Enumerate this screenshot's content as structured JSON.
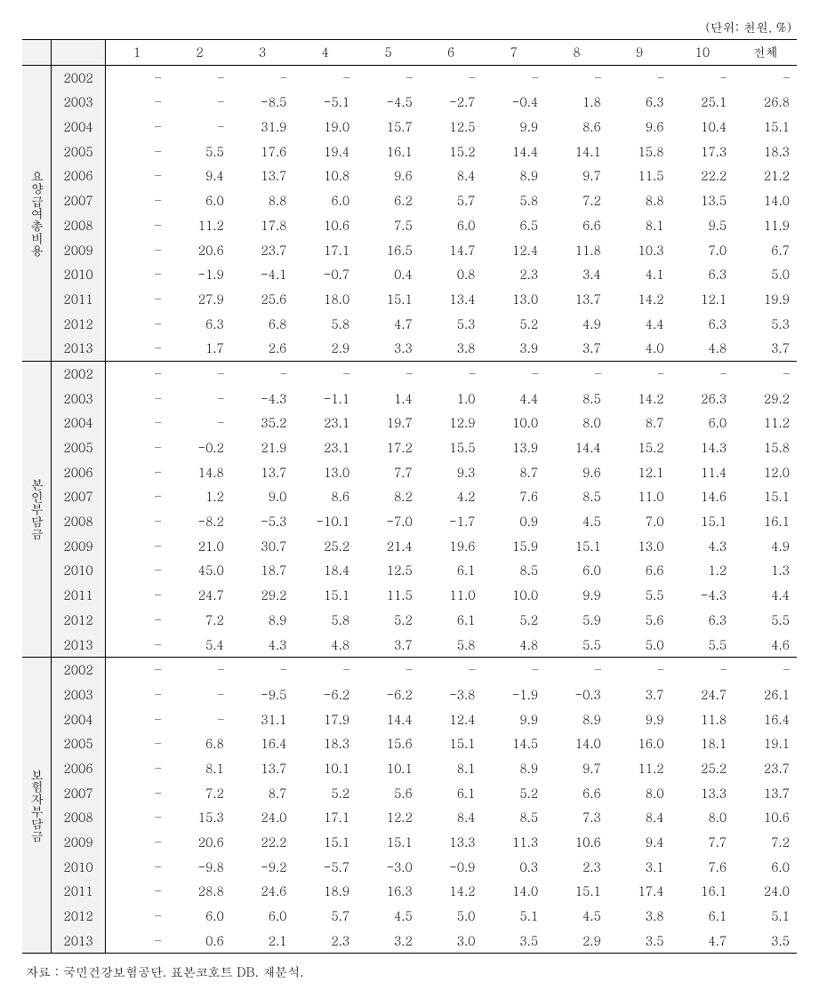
{
  "unit_label": "(단위: 천원, %)",
  "source_label": "자료 : 국민건강보험공단. 표본코호트 DB. 재분석.",
  "columns": [
    "1",
    "2",
    "3",
    "4",
    "5",
    "6",
    "7",
    "8",
    "9",
    "10",
    "전체"
  ],
  "groups": [
    {
      "label": "요양급여총비용",
      "rows": [
        {
          "year": "2002",
          "cells": [
            "–",
            "–",
            "–",
            "–",
            "–",
            "–",
            "–",
            "–",
            "–",
            "–",
            "–"
          ]
        },
        {
          "year": "2003",
          "cells": [
            "–",
            "–",
            "-8.5",
            "-5.1",
            "-4.5",
            "-2.7",
            "-0.4",
            "1.8",
            "6.3",
            "25.1",
            "26.8"
          ]
        },
        {
          "year": "2004",
          "cells": [
            "–",
            "–",
            "31.9",
            "19.0",
            "15.7",
            "12.5",
            "9.9",
            "8.6",
            "9.6",
            "10.4",
            "15.1"
          ]
        },
        {
          "year": "2005",
          "cells": [
            "–",
            "5.5",
            "17.6",
            "19.4",
            "16.1",
            "15.2",
            "14.4",
            "14.1",
            "15.8",
            "17.3",
            "18.3"
          ]
        },
        {
          "year": "2006",
          "cells": [
            "–",
            "9.4",
            "13.7",
            "10.8",
            "9.6",
            "8.4",
            "8.9",
            "9.7",
            "11.5",
            "22.2",
            "21.2"
          ]
        },
        {
          "year": "2007",
          "cells": [
            "–",
            "6.0",
            "8.8",
            "6.0",
            "6.2",
            "5.7",
            "5.8",
            "7.2",
            "8.8",
            "13.5",
            "14.0"
          ]
        },
        {
          "year": "2008",
          "cells": [
            "–",
            "11.2",
            "17.8",
            "10.6",
            "7.5",
            "6.0",
            "6.5",
            "6.6",
            "8.1",
            "9.5",
            "11.9"
          ]
        },
        {
          "year": "2009",
          "cells": [
            "–",
            "20.6",
            "23.7",
            "17.1",
            "16.5",
            "14.7",
            "12.4",
            "11.8",
            "10.3",
            "7.0",
            "6.7"
          ]
        },
        {
          "year": "2010",
          "cells": [
            "–",
            "-1.9",
            "-4.1",
            "-0.7",
            "0.4",
            "0.8",
            "2.3",
            "3.4",
            "4.1",
            "6.3",
            "5.0"
          ]
        },
        {
          "year": "2011",
          "cells": [
            "–",
            "27.9",
            "25.6",
            "18.0",
            "15.1",
            "13.4",
            "13.0",
            "13.7",
            "14.2",
            "12.1",
            "19.9"
          ]
        },
        {
          "year": "2012",
          "cells": [
            "–",
            "6.3",
            "6.8",
            "5.8",
            "4.7",
            "5.3",
            "5.2",
            "4.9",
            "4.4",
            "6.3",
            "5.3"
          ]
        },
        {
          "year": "2013",
          "cells": [
            "–",
            "1.7",
            "2.6",
            "2.9",
            "3.3",
            "3.8",
            "3.9",
            "3.7",
            "4.0",
            "4.8",
            "3.7"
          ]
        }
      ]
    },
    {
      "label": "본인부담금",
      "rows": [
        {
          "year": "2002",
          "cells": [
            "–",
            "–",
            "–",
            "–",
            "–",
            "–",
            "–",
            "–",
            "–",
            "–",
            "–"
          ]
        },
        {
          "year": "2003",
          "cells": [
            "–",
            "–",
            "-4.3",
            "-1.1",
            "1.4",
            "1.0",
            "4.4",
            "8.5",
            "14.2",
            "26.3",
            "29.2"
          ]
        },
        {
          "year": "2004",
          "cells": [
            "–",
            "–",
            "35.2",
            "23.1",
            "19.7",
            "12.9",
            "10.0",
            "8.0",
            "8.7",
            "6.0",
            "11.2"
          ]
        },
        {
          "year": "2005",
          "cells": [
            "–",
            "-0.2",
            "21.9",
            "23.1",
            "17.2",
            "15.5",
            "13.9",
            "14.4",
            "15.2",
            "14.3",
            "15.8"
          ]
        },
        {
          "year": "2006",
          "cells": [
            "–",
            "14.8",
            "13.7",
            "13.0",
            "7.7",
            "9.3",
            "8.7",
            "9.6",
            "12.1",
            "11.4",
            "12.0"
          ]
        },
        {
          "year": "2007",
          "cells": [
            "–",
            "1.2",
            "9.0",
            "8.6",
            "8.2",
            "4.2",
            "7.6",
            "8.5",
            "11.0",
            "14.6",
            "15.1"
          ]
        },
        {
          "year": "2008",
          "cells": [
            "–",
            "-8.2",
            "-5.3",
            "-10.1",
            "-7.0",
            "-1.7",
            "0.9",
            "4.5",
            "7.0",
            "15.1",
            "16.1"
          ]
        },
        {
          "year": "2009",
          "cells": [
            "–",
            "21.0",
            "30.7",
            "25.2",
            "21.4",
            "19.6",
            "15.9",
            "15.1",
            "13.0",
            "4.3",
            "4.9"
          ]
        },
        {
          "year": "2010",
          "cells": [
            "–",
            "45.0",
            "18.7",
            "18.4",
            "12.5",
            "6.1",
            "8.5",
            "6.0",
            "6.6",
            "1.2",
            "1.3"
          ]
        },
        {
          "year": "2011",
          "cells": [
            "–",
            "24.7",
            "29.2",
            "15.1",
            "11.5",
            "11.0",
            "10.0",
            "9.9",
            "5.5",
            "-4.3",
            "4.4"
          ]
        },
        {
          "year": "2012",
          "cells": [
            "–",
            "7.2",
            "8.9",
            "5.8",
            "5.2",
            "6.1",
            "5.2",
            "5.9",
            "5.6",
            "6.3",
            "5.5"
          ]
        },
        {
          "year": "2013",
          "cells": [
            "–",
            "5.4",
            "4.3",
            "4.8",
            "3.7",
            "5.8",
            "4.8",
            "5.5",
            "5.0",
            "5.5",
            "4.6"
          ]
        }
      ]
    },
    {
      "label": "보험자부담금",
      "rows": [
        {
          "year": "2002",
          "cells": [
            "–",
            "–",
            "–",
            "–",
            "–",
            "–",
            "–",
            "–",
            "–",
            "–",
            "–"
          ]
        },
        {
          "year": "2003",
          "cells": [
            "–",
            "–",
            "-9.5",
            "-6.2",
            "-6.2",
            "-3.8",
            "-1.9",
            "-0.3",
            "3.7",
            "24.7",
            "26.1"
          ]
        },
        {
          "year": "2004",
          "cells": [
            "–",
            "–",
            "31.1",
            "17.9",
            "14.4",
            "12.4",
            "9.9",
            "8.9",
            "9.9",
            "11.8",
            "16.4"
          ]
        },
        {
          "year": "2005",
          "cells": [
            "–",
            "6.8",
            "16.4",
            "18.3",
            "15.6",
            "15.1",
            "14.5",
            "14.0",
            "16.0",
            "18.1",
            "19.1"
          ]
        },
        {
          "year": "2006",
          "cells": [
            "–",
            "8.1",
            "13.7",
            "10.1",
            "10.1",
            "8.1",
            "8.9",
            "9.7",
            "11.2",
            "25.2",
            "23.7"
          ]
        },
        {
          "year": "2007",
          "cells": [
            "–",
            "7.2",
            "8.7",
            "5.2",
            "5.6",
            "6.1",
            "5.2",
            "6.6",
            "8.0",
            "13.3",
            "13.7"
          ]
        },
        {
          "year": "2008",
          "cells": [
            "–",
            "15.3",
            "24.0",
            "17.1",
            "12.2",
            "8.4",
            "8.5",
            "7.3",
            "8.4",
            "8.0",
            "10.6"
          ]
        },
        {
          "year": "2009",
          "cells": [
            "–",
            "20.6",
            "22.2",
            "15.1",
            "15.1",
            "13.3",
            "11.3",
            "10.6",
            "9.4",
            "7.7",
            "7.2"
          ]
        },
        {
          "year": "2010",
          "cells": [
            "–",
            "-9.8",
            "-9.2",
            "-5.7",
            "-3.0",
            "-0.9",
            "0.3",
            "2.3",
            "3.1",
            "7.6",
            "6.0"
          ]
        },
        {
          "year": "2011",
          "cells": [
            "–",
            "28.8",
            "24.6",
            "18.9",
            "16.3",
            "14.2",
            "14.0",
            "15.1",
            "17.4",
            "16.1",
            "24.0"
          ]
        },
        {
          "year": "2012",
          "cells": [
            "–",
            "6.0",
            "6.0",
            "5.7",
            "4.5",
            "5.0",
            "5.1",
            "4.5",
            "3.8",
            "6.1",
            "5.1"
          ]
        },
        {
          "year": "2013",
          "cells": [
            "–",
            "0.6",
            "2.1",
            "2.3",
            "3.2",
            "3.0",
            "3.5",
            "2.9",
            "3.5",
            "4.7",
            "3.5"
          ]
        }
      ]
    }
  ]
}
